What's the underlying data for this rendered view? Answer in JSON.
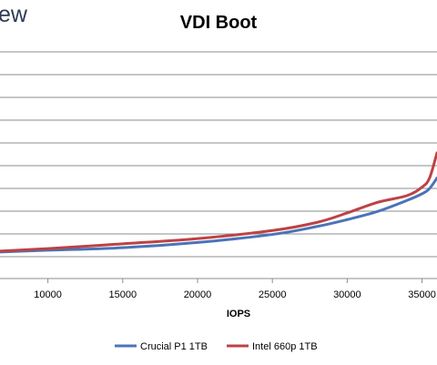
{
  "logo": {
    "text": "ew"
  },
  "chart_data": {
    "type": "line",
    "title": "VDI Boot",
    "xlabel": "IOPS",
    "ylabel": "",
    "xlim": [
      6800,
      36000
    ],
    "x_ticks": [
      10000,
      15000,
      20000,
      25000,
      30000,
      35000
    ],
    "grid": true,
    "legend_position": "bottom",
    "series": [
      {
        "name": "Crucial P1 1TB",
        "color": "#4a74b8",
        "points": [
          [
            6800,
            0.116
          ],
          [
            10000,
            0.124
          ],
          [
            15000,
            0.135
          ],
          [
            20000,
            0.158
          ],
          [
            25000,
            0.193
          ],
          [
            28000,
            0.228
          ],
          [
            30000,
            0.258
          ],
          [
            32000,
            0.293
          ],
          [
            34000,
            0.342
          ],
          [
            35000,
            0.371
          ],
          [
            35500,
            0.394
          ],
          [
            36000,
            0.44
          ]
        ]
      },
      {
        "name": "Intel 660p 1TB",
        "color": "#bd4244",
        "points": [
          [
            6800,
            0.12
          ],
          [
            10000,
            0.131
          ],
          [
            15000,
            0.152
          ],
          [
            20000,
            0.175
          ],
          [
            25000,
            0.21
          ],
          [
            28000,
            0.246
          ],
          [
            30000,
            0.287
          ],
          [
            32000,
            0.333
          ],
          [
            34000,
            0.363
          ],
          [
            35000,
            0.4
          ],
          [
            35500,
            0.44
          ],
          [
            36000,
            0.55
          ]
        ]
      }
    ]
  }
}
